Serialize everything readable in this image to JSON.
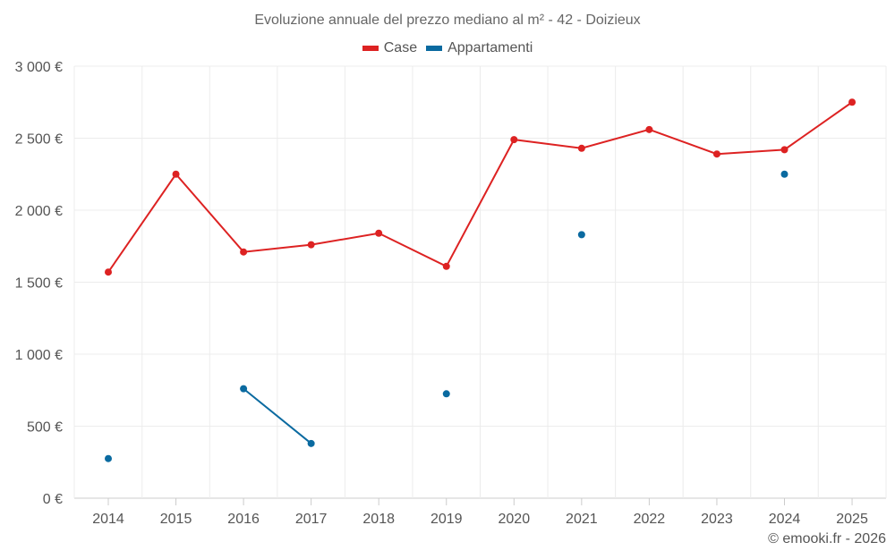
{
  "chart_data": {
    "type": "line",
    "title": "Evoluzione annuale del prezzo mediano al m² - 42 - Doizieux",
    "xlabel": "",
    "ylabel": "",
    "categories": [
      "2014",
      "2015",
      "2016",
      "2017",
      "2018",
      "2019",
      "2020",
      "2021",
      "2022",
      "2023",
      "2024",
      "2025"
    ],
    "ylim": [
      0,
      3000
    ],
    "yticks": [
      0,
      500,
      1000,
      1500,
      2000,
      2500,
      3000
    ],
    "ytick_labels": [
      "0 €",
      "500 €",
      "1 000 €",
      "1 500 €",
      "2 000 €",
      "2 500 €",
      "3 000 €"
    ],
    "grid": true,
    "legend_position": "top-center",
    "series": [
      {
        "name": "Case",
        "color": "#dd2222",
        "values": [
          1570,
          2250,
          1710,
          1760,
          1840,
          1610,
          2490,
          2430,
          2560,
          2390,
          2420,
          2750
        ]
      },
      {
        "name": "Appartamenti",
        "color": "#0a6aa0",
        "values": [
          275,
          null,
          760,
          380,
          null,
          725,
          null,
          1830,
          null,
          null,
          2250,
          null
        ]
      }
    ]
  },
  "credit": "© emooki.fr - 2026"
}
